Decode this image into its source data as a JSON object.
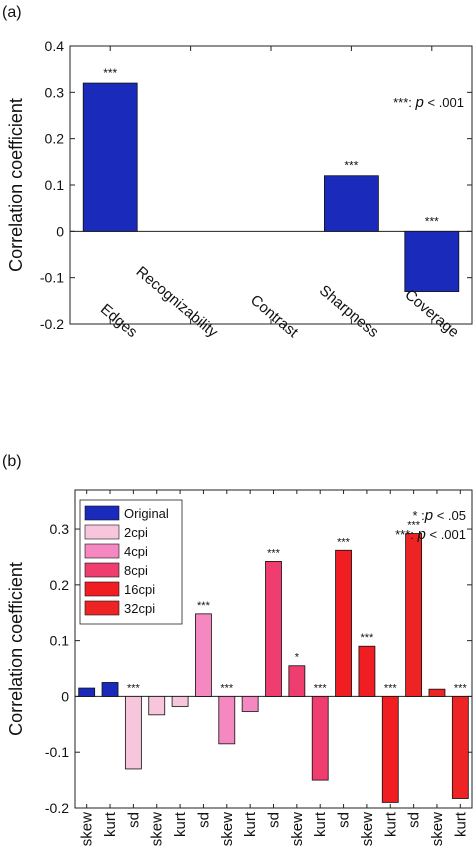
{
  "panels": {
    "a": {
      "label": "(a)"
    },
    "b": {
      "label": "(b)"
    }
  },
  "chart_data": [
    {
      "type": "bar",
      "panel": "(a)",
      "ylabel": "Correlation coefficient",
      "ylim": [
        -0.2,
        0.4
      ],
      "yticks": [
        "0.4",
        "0.3",
        "0.2",
        "0.1",
        "0",
        "-0.1",
        "-0.2"
      ],
      "ytick_values": [
        0.4,
        0.3,
        0.2,
        0.1,
        0,
        -0.1,
        -0.2
      ],
      "categories": [
        "Edges",
        "Recognizability",
        "Contrast",
        "Sharpness",
        "Coverage"
      ],
      "values": [
        0.32,
        0,
        0,
        0.12,
        -0.13
      ],
      "significance": [
        "***",
        "",
        "",
        "***",
        "***"
      ],
      "annotation": {
        "prefix": "***: ",
        "p": "p",
        "suffix": " < .001"
      },
      "color": "#1a2bbb"
    },
    {
      "type": "bar",
      "panel": "(b)",
      "ylabel": "Correlation coefficient",
      "ylim": [
        -0.2,
        0.37
      ],
      "yticks": [
        "0.3",
        "0.2",
        "0.1",
        "0",
        "-0.1",
        "-0.2"
      ],
      "ytick_values": [
        0.3,
        0.2,
        0.1,
        0,
        -0.1,
        -0.2
      ],
      "categories": [
        "skew",
        "kurt",
        "sd",
        "skew",
        "kurt",
        "sd",
        "skew",
        "kurt",
        "sd",
        "skew",
        "kurt",
        "sd",
        "skew",
        "kurt",
        "sd",
        "skew",
        "kurt"
      ],
      "values": [
        0.015,
        0.025,
        -0.13,
        -0.033,
        -0.018,
        0.148,
        -0.085,
        -0.027,
        0.242,
        0.055,
        -0.15,
        0.262,
        0.09,
        -0.19,
        0.292,
        0.013,
        -0.183
      ],
      "group": [
        0,
        0,
        1,
        1,
        1,
        2,
        2,
        2,
        3,
        3,
        3,
        4,
        4,
        4,
        5,
        5,
        5
      ],
      "significance": [
        "",
        "",
        "***",
        "",
        "",
        "***",
        "***",
        "",
        "***",
        "*",
        "***",
        "***",
        "***",
        "***",
        "***",
        "",
        "***"
      ],
      "series": [
        {
          "name": "Original",
          "color": "#1a2bbb"
        },
        {
          "name": "2cpi",
          "color": "#f7c6dc"
        },
        {
          "name": "4cpi",
          "color": "#f587c1"
        },
        {
          "name": "8cpi",
          "color": "#ee3d6e"
        },
        {
          "name": "16cpi",
          "color": "#f01d23"
        },
        {
          "name": "32cpi",
          "color": "#ee2424"
        }
      ],
      "annotations": [
        {
          "mark": "*",
          "sep": " :",
          "p": "p",
          "suffix": " < .05"
        },
        {
          "mark": "***",
          "sep": ": ",
          "p": "p",
          "suffix": " < .001"
        }
      ]
    }
  ]
}
